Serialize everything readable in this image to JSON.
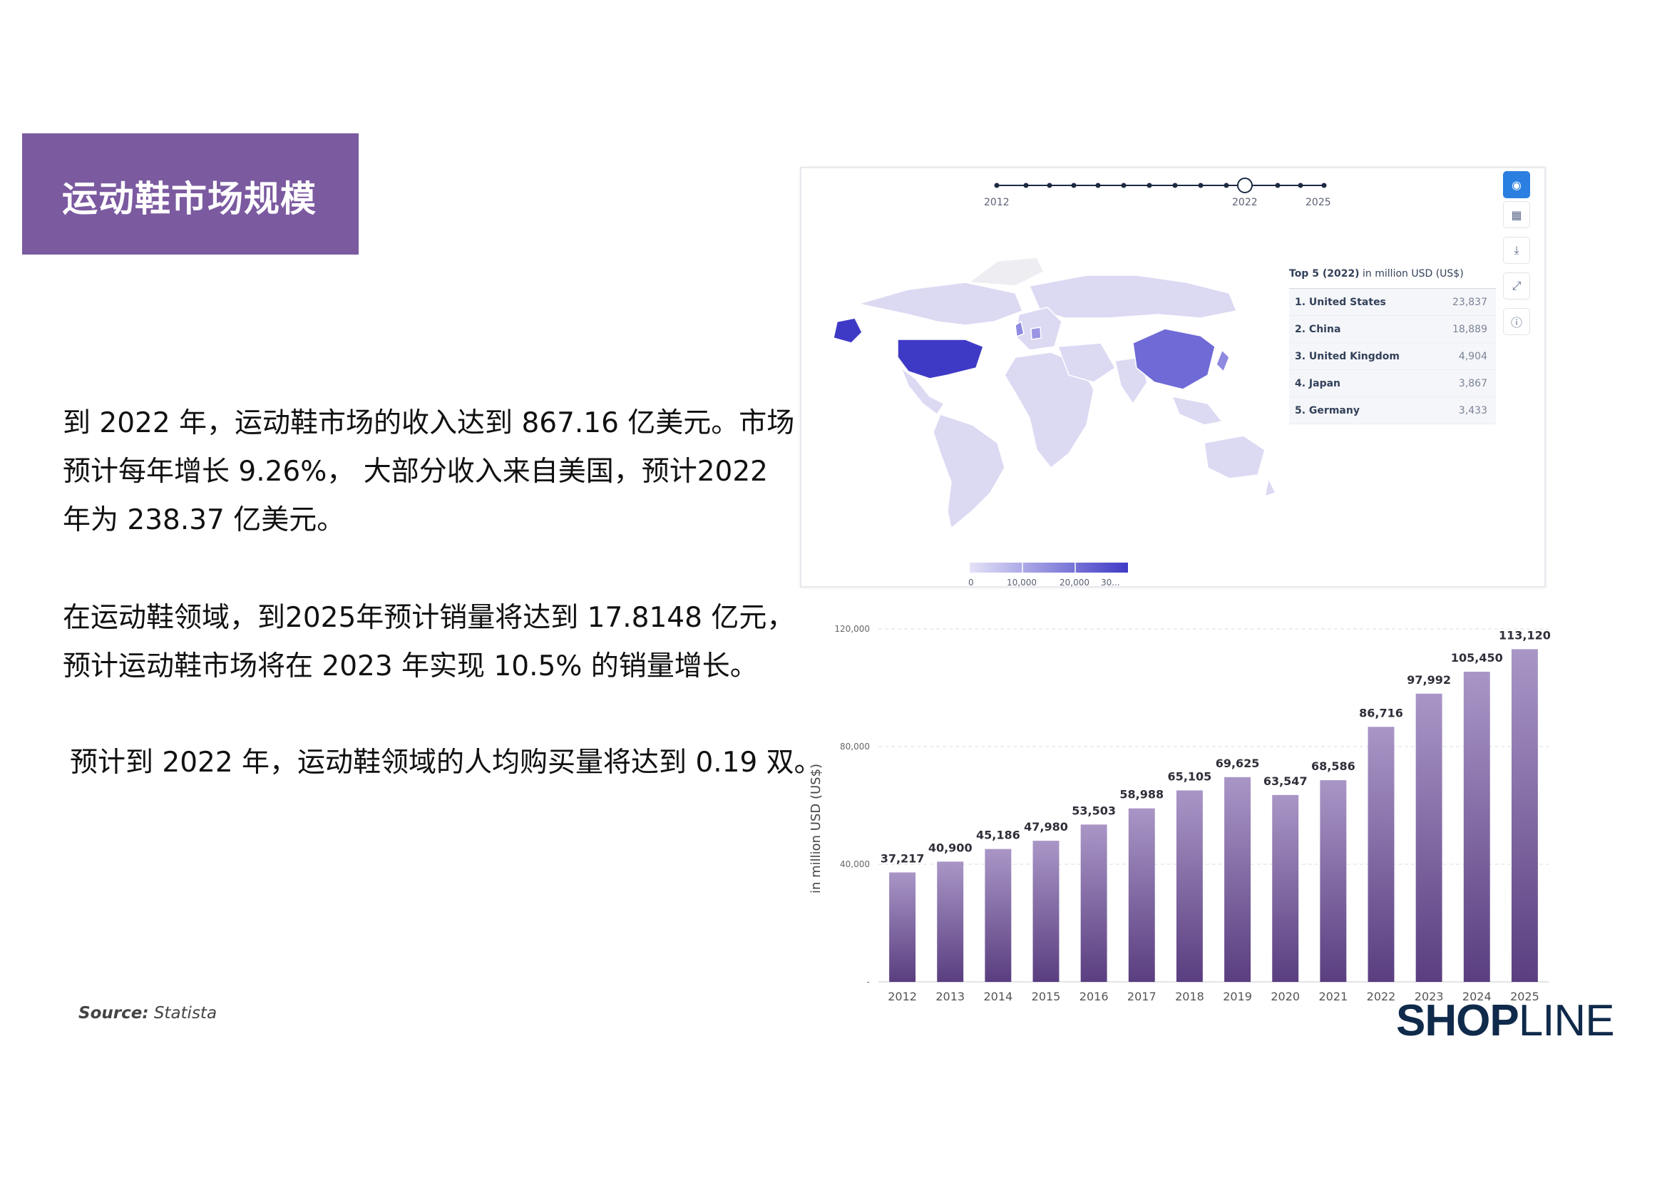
{
  "slide": {
    "title": "运动鞋市场规模",
    "paragraph_1": [
      "到 2022 年，运动鞋市场的收入达到 867.16 亿美元。市场",
      "预计每年增长 9.26%， 大部分收入来自美国，预计2022",
      "年为 238.37 亿美元。"
    ],
    "paragraph_2": [
      "在运动鞋领域，到2025年预计销量将达到 17.8148 亿元，",
      "预计运动鞋市场将在 2023 年实现 10.5% 的销量增长。"
    ],
    "paragraph_3": "预计到 2022 年，运动鞋领域的人均购买量将达到 0.19 双。",
    "source_label": "Source:",
    "source_name": "Statista",
    "logo_shop": "SHOP",
    "logo_line": "LINE"
  },
  "map_panel": {
    "timeline_labels": [
      "2012",
      "2022",
      "2025"
    ],
    "tools": [
      "globe-icon",
      "table-icon",
      "download-icon",
      "expand-icon",
      "info-icon"
    ],
    "top5_title_bold": "Top 5 (2022)",
    "top5_title_rest": "in million USD (US$)",
    "top5": [
      {
        "name": "1. United States",
        "value": "23,837"
      },
      {
        "name": "2. China",
        "value": "18,889"
      },
      {
        "name": "3. United Kingdom",
        "value": "4,904"
      },
      {
        "name": "4. Japan",
        "value": "3,867"
      },
      {
        "name": "5. Germany",
        "value": "3,433"
      }
    ],
    "legend_labels": [
      "0",
      "10,000",
      "20,000",
      "30..."
    ],
    "colors": {
      "light": "#dcd9f3",
      "mid": "#7b76dc",
      "dark": "#3f3ac6"
    }
  },
  "chart_data": {
    "type": "bar",
    "categories": [
      "2012",
      "2013",
      "2014",
      "2015",
      "2016",
      "2017",
      "2018",
      "2019",
      "2020",
      "2021",
      "2022",
      "2023",
      "2024",
      "2025"
    ],
    "values": [
      37217,
      40900,
      45186,
      47980,
      53503,
      58988,
      65105,
      69625,
      63547,
      68586,
      86716,
      97992,
      105450,
      113120
    ],
    "value_labels": [
      "37,217",
      "40,900",
      "45,186",
      "47,980",
      "53,503",
      "58,988",
      "65,105",
      "69,625",
      "63,547",
      "68,586",
      "86,716",
      "97,992",
      "105,450",
      "113,120"
    ],
    "ylabel": "in million USD (US$)",
    "yticks": [
      0,
      40000,
      80000,
      120000
    ],
    "ytick_labels": [
      "-",
      "40,000",
      "80,000",
      "120,000"
    ],
    "ylim": [
      0,
      120000
    ],
    "bar_color_top": "#a996c6",
    "bar_color_bottom": "#5a3e80"
  }
}
